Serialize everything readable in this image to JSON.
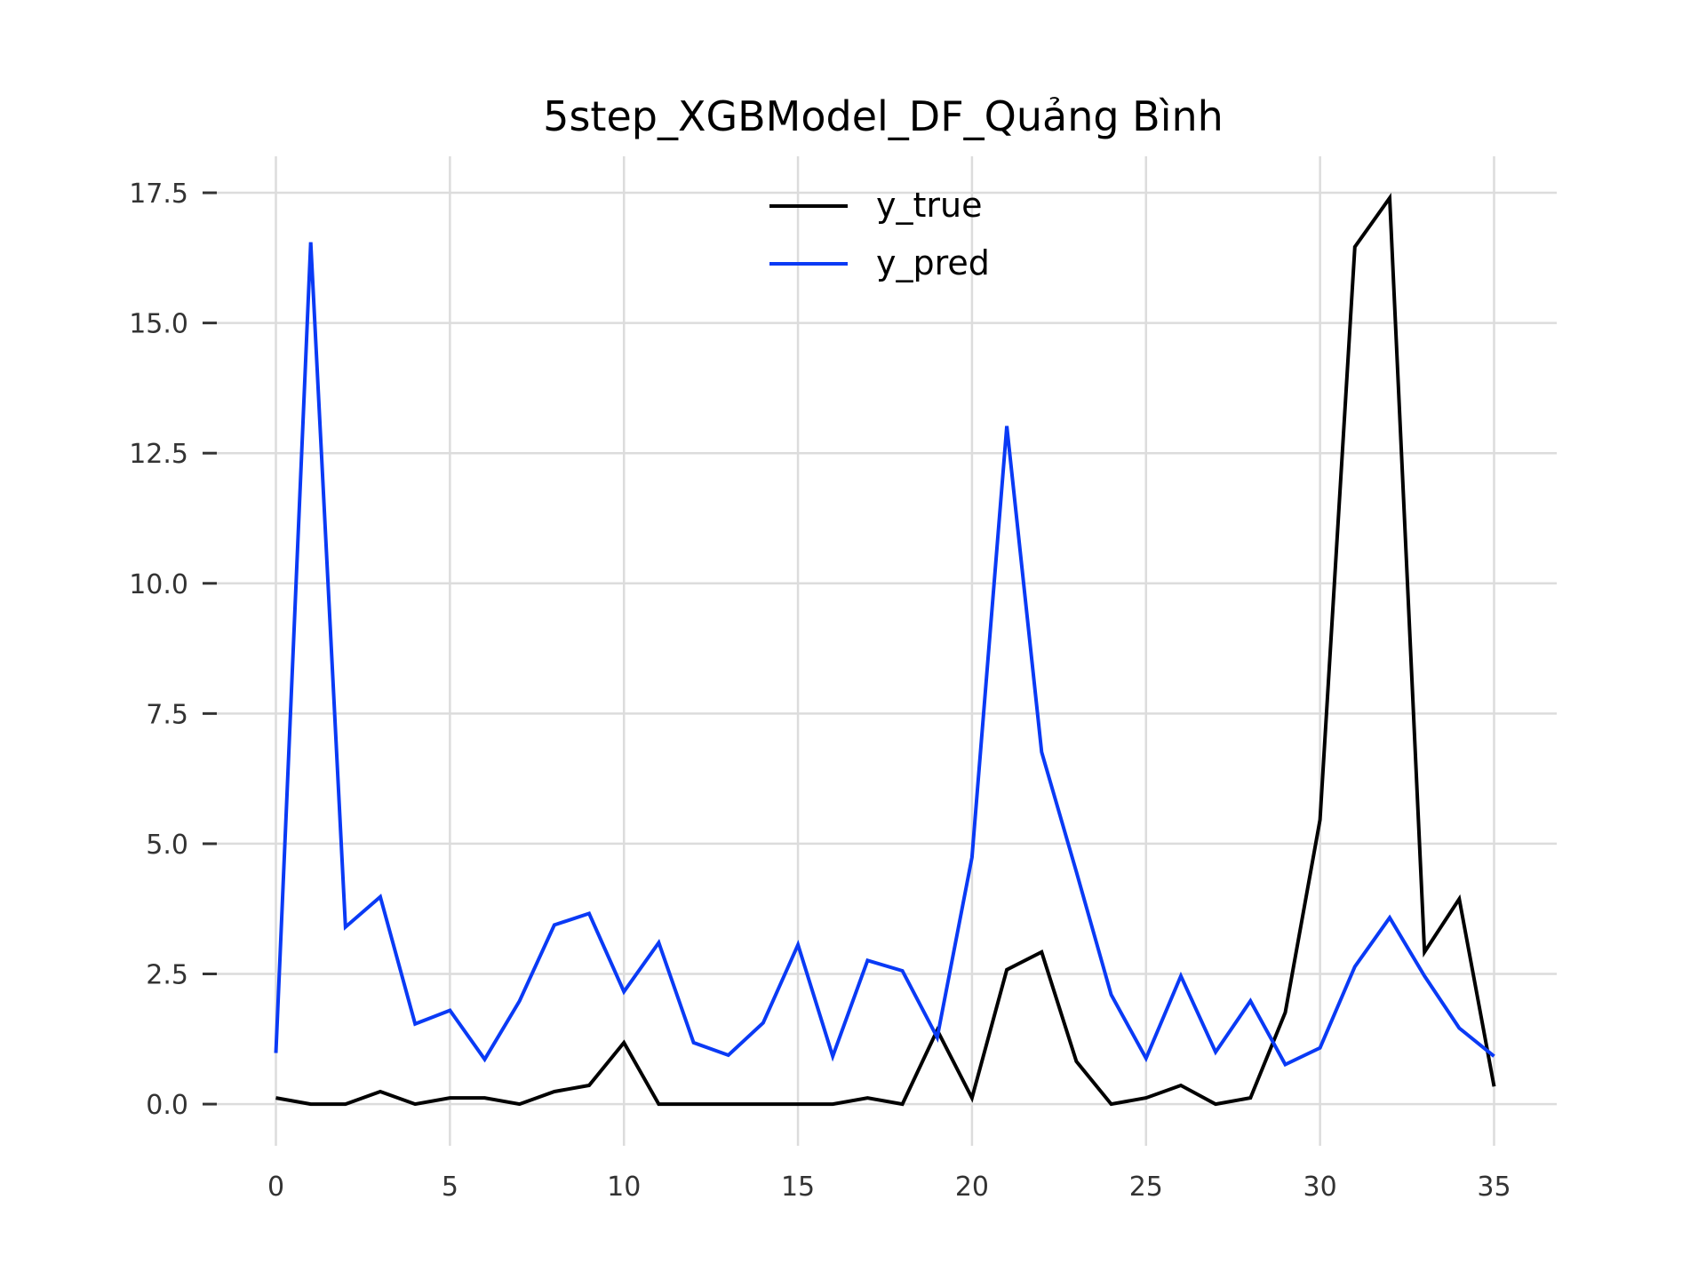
{
  "chart_data": {
    "type": "line",
    "title": "5step_XGBModel_DF_Quảng Bình",
    "xlabel": "",
    "ylabel": "",
    "x": [
      0,
      1,
      2,
      3,
      4,
      5,
      6,
      7,
      8,
      9,
      10,
      11,
      12,
      13,
      14,
      15,
      16,
      17,
      18,
      19,
      20,
      21,
      22,
      23,
      24,
      25,
      26,
      27,
      28,
      29,
      30,
      31,
      32,
      33,
      34,
      35
    ],
    "xlim": [
      -1.8,
      36.8
    ],
    "ylim": [
      -0.8,
      18.2
    ],
    "xticks": [
      0,
      5,
      10,
      15,
      20,
      25,
      30,
      35
    ],
    "xtick_labels": [
      "0",
      "5",
      "10",
      "15",
      "20",
      "25",
      "30",
      "35"
    ],
    "yticks": [
      0,
      2.5,
      5,
      7.5,
      10,
      12.5,
      15,
      17.5
    ],
    "ytick_labels": [
      "0.0",
      "2.5",
      "5.0",
      "7.5",
      "10.0",
      "12.5",
      "15.0",
      "17.5"
    ],
    "grid": true,
    "legend_position": "top-center",
    "series": [
      {
        "name": "y_true",
        "color": "#000000",
        "values": [
          0.12,
          0.0,
          0.0,
          0.24,
          0.0,
          0.12,
          0.12,
          0.0,
          0.24,
          0.36,
          1.18,
          0.0,
          0.0,
          0.0,
          0.0,
          0.0,
          0.0,
          0.12,
          0.0,
          1.42,
          0.12,
          2.58,
          2.92,
          0.82,
          0.0,
          0.12,
          0.36,
          0.0,
          0.12,
          1.76,
          5.46,
          16.46,
          17.4,
          2.92,
          3.94,
          0.34
        ]
      },
      {
        "name": "y_pred",
        "color": "#0a3af5",
        "values": [
          0.98,
          16.55,
          3.4,
          3.98,
          1.54,
          1.8,
          0.86,
          1.98,
          3.44,
          3.66,
          2.16,
          3.1,
          1.18,
          0.94,
          1.56,
          3.06,
          0.92,
          2.76,
          2.56,
          1.28,
          4.74,
          13.02,
          6.76,
          4.46,
          2.1,
          0.88,
          2.46,
          1.0,
          1.98,
          0.76,
          1.08,
          2.64,
          3.58,
          2.46,
          1.46,
          0.92
        ]
      }
    ]
  }
}
